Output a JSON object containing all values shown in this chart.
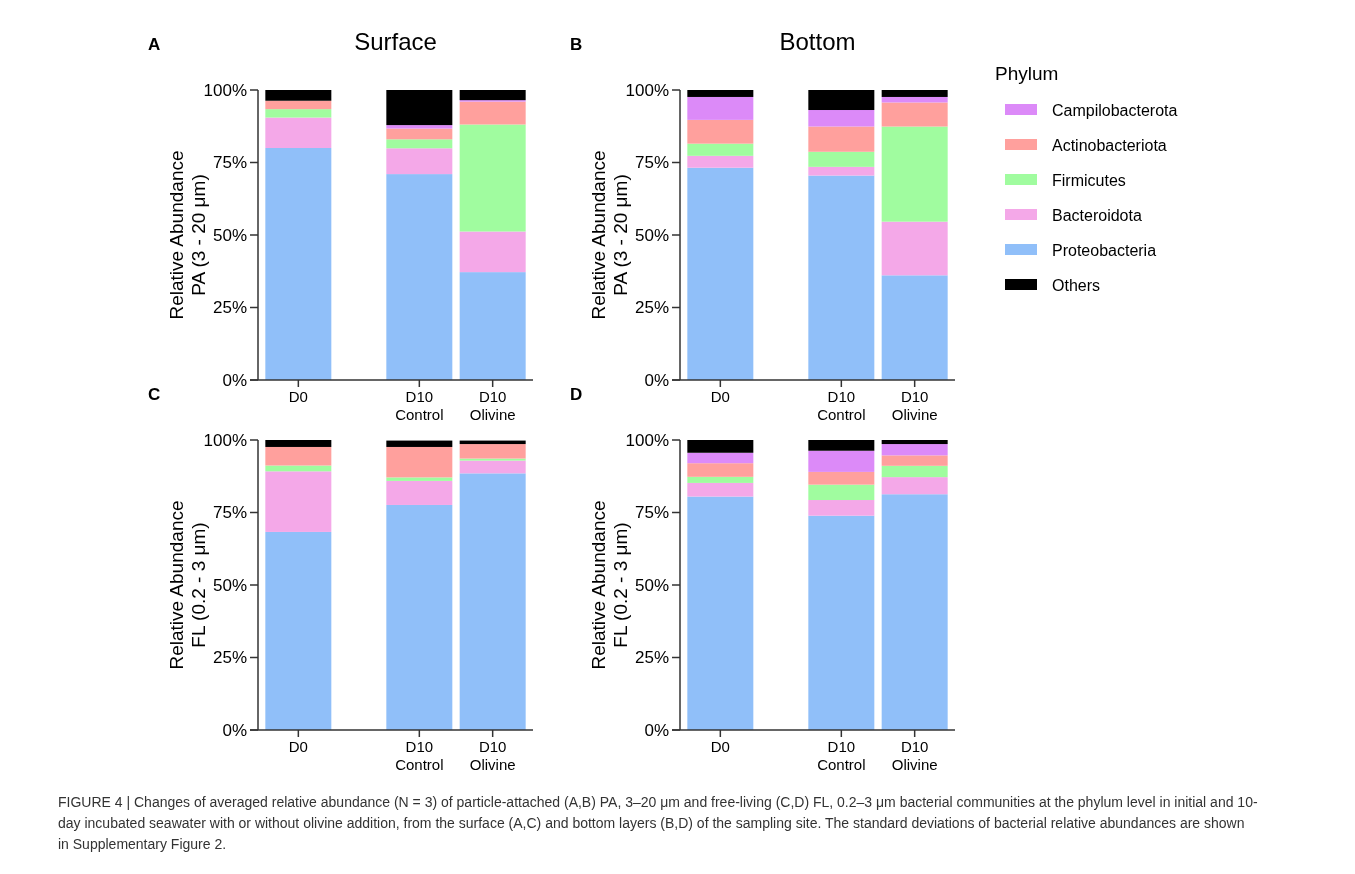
{
  "chart_data": [
    {
      "type": "bar",
      "stacked": true,
      "title": "Surface",
      "annotations": [
        "A"
      ],
      "ylabel": "Relative Abundance\nPA (3 - 20 μm)",
      "categories": [
        "D0",
        "D10 Control",
        "D10 Olivine"
      ],
      "ylim": [
        0,
        100
      ],
      "yticks": [
        {
          "value": 0,
          "label": "0%"
        },
        {
          "value": 25,
          "label": "25%"
        },
        {
          "value": 50,
          "label": "50%"
        },
        {
          "value": 75,
          "label": "75%"
        },
        {
          "value": 100,
          "label": "100%"
        }
      ],
      "legend": false,
      "series": [
        {
          "color": "#90bff9",
          "values": [
            80,
            71,
            37.2
          ]
        },
        {
          "color": "#f4a8e8",
          "values": [
            10.5,
            8.9,
            14
          ]
        },
        {
          "color": "#a0fc9f",
          "values": [
            2.9,
            3.1,
            36.9
          ]
        },
        {
          "color": "#ffa09d",
          "values": [
            2.9,
            3.7,
            7.9
          ]
        },
        {
          "color": "#dc8af8",
          "values": [
            0,
            1.2,
            0.5
          ]
        },
        {
          "color": "#000000",
          "values": [
            3.7,
            12.1,
            3.5
          ]
        }
      ]
    },
    {
      "type": "bar",
      "stacked": true,
      "title": "Bottom",
      "annotations": [
        "B"
      ],
      "ylabel": "Relative Abundance\nPA (3 - 20 μm)",
      "categories": [
        "D0",
        "D10 Control",
        "D10 Olivine"
      ],
      "ylim": [
        0,
        100
      ],
      "yticks": [
        {
          "value": 0,
          "label": "0%"
        },
        {
          "value": 25,
          "label": "25%"
        },
        {
          "value": 50,
          "label": "50%"
        },
        {
          "value": 75,
          "label": "75%"
        },
        {
          "value": 100,
          "label": "100%"
        }
      ],
      "legend": "right",
      "legend_title": "Phylum",
      "series": [
        {
          "name": "Proteobacteria",
          "color": "#90bff9",
          "values": [
            73.2,
            70.5,
            36.1
          ]
        },
        {
          "name": "Bacteroidota",
          "color": "#f4a8e8",
          "values": [
            4.1,
            3,
            18.5
          ]
        },
        {
          "name": "Firmicutes",
          "color": "#a0fc9f",
          "values": [
            4.2,
            5.2,
            32.8
          ]
        },
        {
          "name": "Actinobacteriota",
          "color": "#ffa09d",
          "values": [
            8.2,
            8.7,
            8.3
          ]
        },
        {
          "name": "Campilobacterota",
          "color": "#dc8af8",
          "values": [
            7.9,
            5.7,
            1.9
          ]
        },
        {
          "name": "Others",
          "color": "#000000",
          "values": [
            2.4,
            6.9,
            2.4
          ]
        }
      ]
    },
    {
      "type": "bar",
      "stacked": true,
      "annotations": [
        "C"
      ],
      "ylabel": "Relative Abundance\nFL (0.2 - 3 μm)",
      "categories": [
        "D0",
        "D10 Control",
        "D10 Olivine"
      ],
      "ylim": [
        0,
        100
      ],
      "yticks": [
        {
          "value": 0,
          "label": "0%"
        },
        {
          "value": 25,
          "label": "25%"
        },
        {
          "value": 50,
          "label": "50%"
        },
        {
          "value": 75,
          "label": "75%"
        },
        {
          "value": 100,
          "label": "100%"
        }
      ],
      "legend": false,
      "series": [
        {
          "color": "#90bff9",
          "values": [
            68.3,
            77.6,
            88.5
          ]
        },
        {
          "color": "#f4a8e8",
          "values": [
            20.9,
            8.3,
            4.4
          ]
        },
        {
          "color": "#a0fc9f",
          "values": [
            2,
            1.2,
            0.7
          ]
        },
        {
          "color": "#ffa09d",
          "values": [
            6.4,
            10.5,
            5
          ]
        },
        {
          "color": "#dc8af8",
          "values": [
            0,
            null,
            null
          ]
        },
        {
          "color": "#000000",
          "values": [
            2.4,
            2.2,
            1.2
          ]
        }
      ]
    },
    {
      "type": "bar",
      "stacked": true,
      "annotations": [
        "D",
        "FIGURE 4 | Changes of averaged relative abundance (N = 3) of particle-attached (A,B) PA, 3–20 μm and free-living (C,D) FL, 0.2–3 μm bacterial communities at the phylum level in initial and 10-day incubated seawater with or without olivine addition, from the surface (A,C) and bottom layers (B,D) of the sampling site. The standard deviations of bacterial relative abundances are shown in Supplementary Figure 2."
      ],
      "ylabel": "Relative Abundance\nFL (0.2 - 3 μm)",
      "categories": [
        "D0",
        "D10 Control",
        "D10 Olivine"
      ],
      "ylim": [
        0,
        100
      ],
      "yticks": [
        {
          "value": 0,
          "label": "0%"
        },
        {
          "value": 25,
          "label": "25%"
        },
        {
          "value": 50,
          "label": "50%"
        },
        {
          "value": 75,
          "label": "75%"
        },
        {
          "value": 100,
          "label": "100%"
        }
      ],
      "legend": false,
      "series": [
        {
          "color": "#90bff9",
          "values": [
            80.5,
            73.9,
            81.3
          ]
        },
        {
          "color": "#f4a8e8",
          "values": [
            4.7,
            5.4,
            5.9
          ]
        },
        {
          "color": "#a0fc9f",
          "values": [
            2.1,
            5.3,
            3.9
          ]
        },
        {
          "color": "#ffa09d",
          "values": [
            4.7,
            4.4,
            3.6
          ]
        },
        {
          "color": "#dc8af8",
          "values": [
            3.6,
            7.3,
            3.9
          ]
        },
        {
          "color": "#000000",
          "values": [
            4.4,
            3.7,
            1.4
          ]
        }
      ]
    }
  ]
}
